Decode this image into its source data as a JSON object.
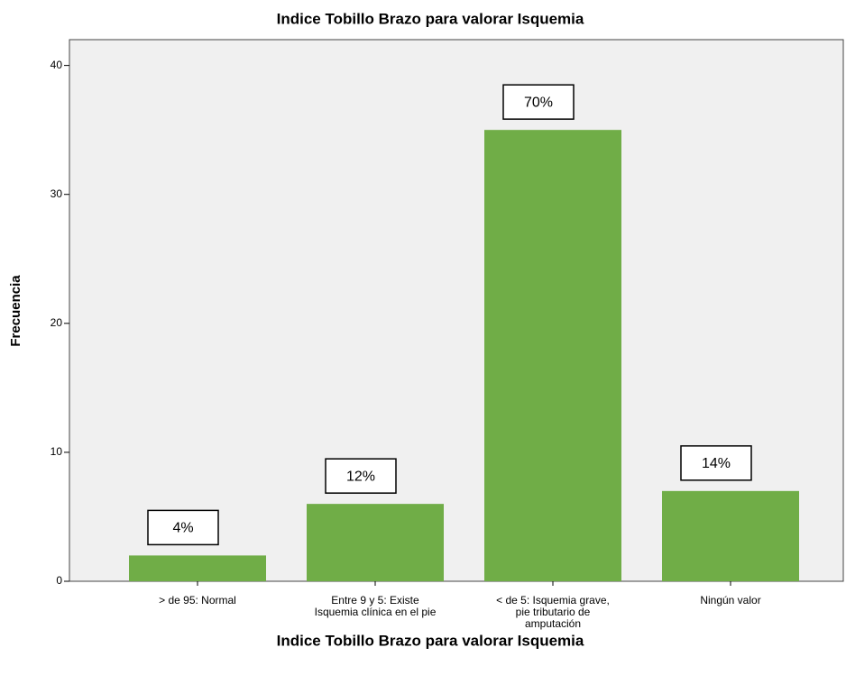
{
  "chart_data": {
    "type": "bar",
    "title": "Indice Tobillo Brazo para valorar Isquemia",
    "x_label": "Indice Tobillo Brazo para valorar Isquemia",
    "y_label": "Frecuencia",
    "categories": [
      [
        "> de 95: Normal"
      ],
      [
        "Entre 9 y 5: Existe",
        "Isquemia clínica en el pie"
      ],
      [
        "< de 5: Isquemia grave,",
        "pie tributario de",
        "amputación"
      ],
      [
        "Ningún valor"
      ]
    ],
    "values": [
      2,
      6,
      35,
      7
    ],
    "annotations": [
      "4%",
      "12%",
      "70%",
      "14%"
    ],
    "color": "#70ad47",
    "ylim": [
      0,
      42
    ],
    "yticks": [
      0,
      10,
      20,
      30,
      40
    ],
    "grid": false
  }
}
